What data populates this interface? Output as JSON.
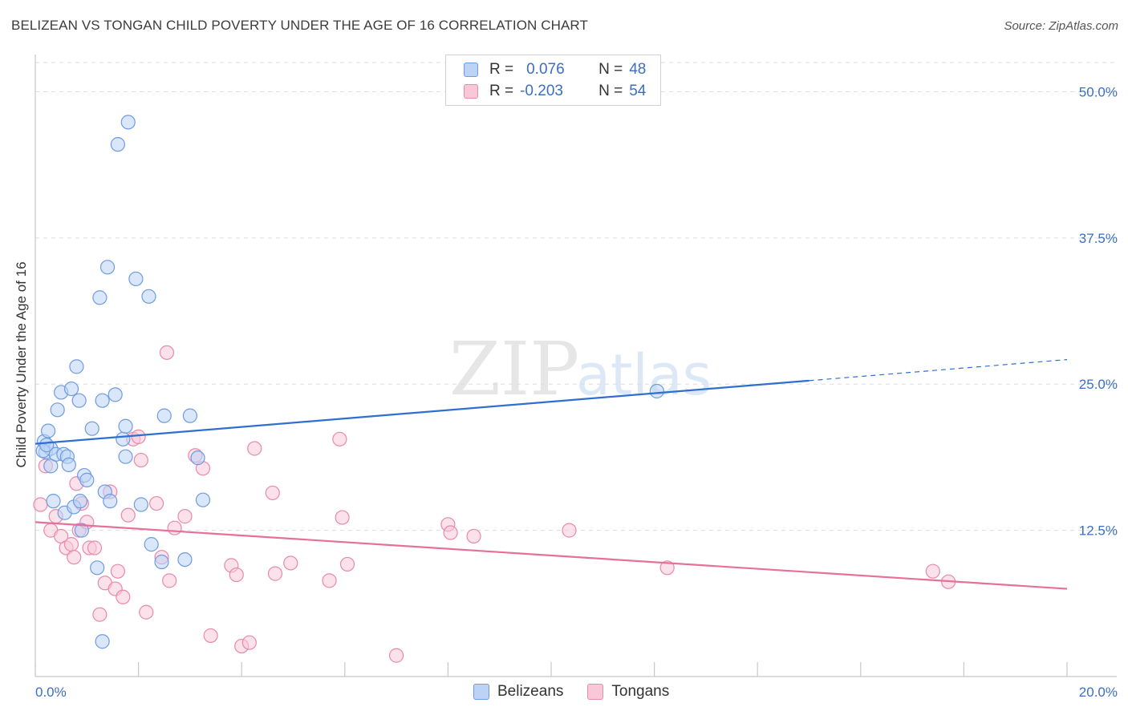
{
  "title": "BELIZEAN VS TONGAN CHILD POVERTY UNDER THE AGE OF 16 CORRELATION CHART",
  "source": "Source: ZipAtlas.com",
  "watermark": {
    "zip": "ZIP",
    "atlas": "atlas"
  },
  "legend_top": {
    "rows": [
      {
        "r_label": "R =",
        "r_value": "0.076",
        "n_label": "N =",
        "n_value": "48"
      },
      {
        "r_label": "R =",
        "r_value": "-0.203",
        "n_label": "N =",
        "n_value": "54"
      }
    ]
  },
  "colors": {
    "belizean_fill": "#bcd3f5",
    "belizean_stroke": "#6f9be0",
    "belizean_line": "#2f6fce",
    "tongan_fill": "#f8c8d8",
    "tongan_stroke": "#e88aaa",
    "tongan_line": "#e5709a",
    "grid": "#dddddd",
    "tick_text": "#3a6fc4"
  },
  "chart_data": {
    "type": "scatter",
    "title": "BELIZEAN VS TONGAN CHILD POVERTY UNDER THE AGE OF 16 CORRELATION CHART",
    "xlabel": "",
    "ylabel": "Child Poverty Under the Age of 16",
    "xlim": [
      0,
      20
    ],
    "ylim": [
      0,
      52.5
    ],
    "x_tick_labels": [
      "0.0%",
      "20.0%"
    ],
    "y_ticks": [
      12.5,
      25.0,
      37.5,
      50.0
    ],
    "y_tick_labels": [
      "12.5%",
      "25.0%",
      "37.5%",
      "50.0%"
    ],
    "grid": true,
    "legend_position": "top-center",
    "series": [
      {
        "name": "Belizeans",
        "r": 0.076,
        "n": 48,
        "trend": {
          "x0": 0,
          "y0": 19.9,
          "x1": 15,
          "y1": 25.3,
          "dashed_to_x": 20,
          "dashed_to_y": 27.1
        },
        "points": [
          [
            0.17,
            20.1
          ],
          [
            0.2,
            19.2
          ],
          [
            0.25,
            21.0
          ],
          [
            0.3,
            19.5
          ],
          [
            0.3,
            18.0
          ],
          [
            0.35,
            15.0
          ],
          [
            0.4,
            19.0
          ],
          [
            0.43,
            22.8
          ],
          [
            0.5,
            24.3
          ],
          [
            0.55,
            19.0
          ],
          [
            0.57,
            14.0
          ],
          [
            0.62,
            18.8
          ],
          [
            0.65,
            18.1
          ],
          [
            0.7,
            24.6
          ],
          [
            0.75,
            14.5
          ],
          [
            0.8,
            26.5
          ],
          [
            0.85,
            23.6
          ],
          [
            0.87,
            15.0
          ],
          [
            0.9,
            12.5
          ],
          [
            0.95,
            17.2
          ],
          [
            1.0,
            16.8
          ],
          [
            1.1,
            21.2
          ],
          [
            1.2,
            9.3
          ],
          [
            1.25,
            32.4
          ],
          [
            1.3,
            23.6
          ],
          [
            1.35,
            15.8
          ],
          [
            1.45,
            15.0
          ],
          [
            1.55,
            24.1
          ],
          [
            1.6,
            45.5
          ],
          [
            1.7,
            20.3
          ],
          [
            1.75,
            21.4
          ],
          [
            1.75,
            18.8
          ],
          [
            1.8,
            47.4
          ],
          [
            1.95,
            34.0
          ],
          [
            2.05,
            14.7
          ],
          [
            2.2,
            32.5
          ],
          [
            2.25,
            11.3
          ],
          [
            2.45,
            9.8
          ],
          [
            2.5,
            22.3
          ],
          [
            2.9,
            10.0
          ],
          [
            3.0,
            22.3
          ],
          [
            3.15,
            18.7
          ],
          [
            3.25,
            15.1
          ],
          [
            1.4,
            35.0
          ],
          [
            1.3,
            3.0
          ],
          [
            12.05,
            24.4
          ],
          [
            0.15,
            19.3
          ],
          [
            0.22,
            19.8
          ]
        ]
      },
      {
        "name": "Tongans",
        "r": -0.203,
        "n": 54,
        "trend": {
          "x0": 0,
          "y0": 13.2,
          "x1": 20,
          "y1": 7.5
        },
        "points": [
          [
            0.1,
            14.7
          ],
          [
            0.2,
            18.0
          ],
          [
            0.3,
            12.5
          ],
          [
            0.4,
            13.7
          ],
          [
            0.5,
            12.0
          ],
          [
            0.6,
            11.0
          ],
          [
            0.7,
            11.3
          ],
          [
            0.75,
            10.2
          ],
          [
            0.8,
            16.5
          ],
          [
            0.85,
            12.5
          ],
          [
            0.9,
            14.8
          ],
          [
            1.0,
            13.2
          ],
          [
            1.05,
            11.0
          ],
          [
            1.15,
            11.0
          ],
          [
            1.25,
            5.3
          ],
          [
            1.35,
            8.0
          ],
          [
            1.45,
            15.8
          ],
          [
            1.55,
            7.5
          ],
          [
            1.6,
            9.0
          ],
          [
            1.7,
            6.8
          ],
          [
            1.8,
            13.8
          ],
          [
            1.9,
            20.3
          ],
          [
            2.0,
            20.5
          ],
          [
            2.05,
            18.5
          ],
          [
            2.15,
            5.5
          ],
          [
            2.35,
            14.8
          ],
          [
            2.45,
            10.2
          ],
          [
            2.55,
            27.7
          ],
          [
            2.6,
            8.2
          ],
          [
            2.7,
            12.7
          ],
          [
            2.9,
            13.7
          ],
          [
            3.1,
            18.9
          ],
          [
            3.25,
            17.8
          ],
          [
            3.4,
            3.5
          ],
          [
            3.8,
            9.5
          ],
          [
            3.9,
            8.7
          ],
          [
            4.0,
            2.6
          ],
          [
            4.15,
            2.9
          ],
          [
            4.25,
            19.5
          ],
          [
            4.6,
            15.7
          ],
          [
            4.65,
            8.8
          ],
          [
            4.95,
            9.7
          ],
          [
            5.7,
            8.2
          ],
          [
            5.9,
            20.3
          ],
          [
            5.95,
            13.6
          ],
          [
            6.05,
            9.6
          ],
          [
            7.0,
            1.8
          ],
          [
            8.0,
            13.0
          ],
          [
            8.05,
            12.3
          ],
          [
            8.5,
            12.0
          ],
          [
            10.35,
            12.5
          ],
          [
            12.25,
            9.3
          ],
          [
            17.4,
            9.0
          ],
          [
            17.7,
            8.1
          ]
        ]
      }
    ]
  }
}
